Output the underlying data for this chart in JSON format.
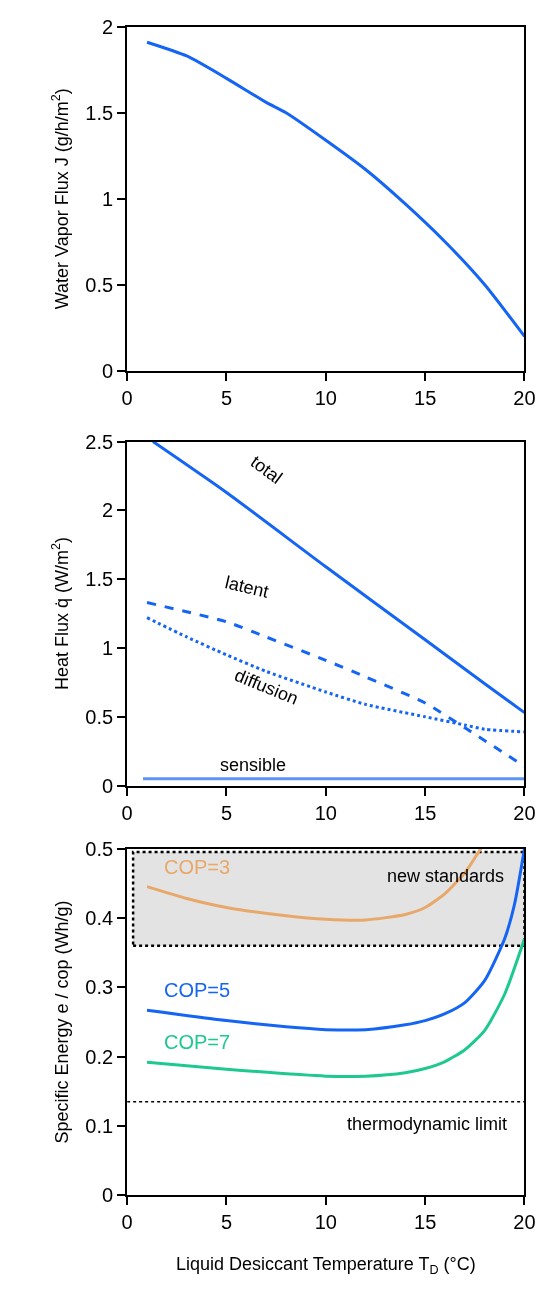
{
  "chart_data": [
    {
      "type": "line",
      "ylabel": "Water Vapor Flux J (g/h/m$^{2}$)",
      "xlim": [
        0,
        20
      ],
      "xticks": [
        0,
        5,
        10,
        15,
        20
      ],
      "ylim": [
        0,
        2
      ],
      "yticks": [
        0,
        0.5,
        1,
        1.5,
        2
      ],
      "grid": false,
      "legend": false,
      "marker": "none",
      "series": [
        {
          "color": "#1565f5",
          "line_style": "solid",
          "x": [
            1,
            3,
            5,
            7,
            8,
            10,
            12,
            14,
            16,
            18,
            20
          ],
          "values": [
            1.91,
            1.83,
            1.7,
            1.56,
            1.5,
            1.34,
            1.17,
            0.97,
            0.75,
            0.5,
            0.2
          ]
        }
      ]
    },
    {
      "type": "line",
      "ylabel": "Heat Flux q̇ (W/m$^{2}$)",
      "xlim": [
        0,
        20
      ],
      "xticks": [
        0,
        5,
        10,
        15,
        20
      ],
      "ylim": [
        0,
        2.5
      ],
      "yticks": [
        0,
        0.5,
        1,
        1.5,
        2,
        2.5
      ],
      "grid": false,
      "legend": false,
      "marker": "none",
      "series": [
        {
          "name": "total",
          "color": "#1565f5",
          "line_style": "solid",
          "x": [
            1.3,
            5,
            10,
            15,
            18,
            20
          ],
          "values": [
            2.5,
            2.13,
            1.59,
            1.06,
            0.74,
            0.53
          ]
        },
        {
          "name": "latent",
          "color": "#1565f5",
          "line_style": "dashed",
          "x": [
            1,
            5,
            7,
            10,
            12,
            15,
            17,
            20
          ],
          "values": [
            1.33,
            1.19,
            1.08,
            0.91,
            0.79,
            0.6,
            0.42,
            0.14
          ]
        },
        {
          "name": "diffusion",
          "color": "#1565f5",
          "line_style": "dotted",
          "x": [
            1,
            3,
            5,
            7,
            10,
            12,
            15,
            17,
            18,
            20
          ],
          "values": [
            1.22,
            1.08,
            0.95,
            0.83,
            0.68,
            0.59,
            0.5,
            0.44,
            0.41,
            0.39
          ]
        },
        {
          "name": "sensible",
          "color": "#5b93f5",
          "line_style": "solid",
          "x": [
            0.8,
            20
          ],
          "values": [
            0.05,
            0.05
          ]
        }
      ]
    },
    {
      "type": "line",
      "xlabel": "Liquid Desiccant Temperature T$_{D}$ (°C)",
      "ylabel": "Specific Energy e / cop (Wh/g)",
      "xlim": [
        0,
        20
      ],
      "xticks": [
        0,
        5,
        10,
        15,
        20
      ],
      "ylim": [
        0,
        0.5
      ],
      "yticks": [
        0,
        0.1,
        0.2,
        0.3,
        0.4,
        0.5
      ],
      "grid": false,
      "legend": false,
      "marker": "none",
      "bands": [
        {
          "axis": "y",
          "from": 0.36,
          "to": 0.495,
          "label": "new standards",
          "color": "#e3e3e3"
        }
      ],
      "ref_lines": [
        {
          "axis": "y",
          "value": 0.135,
          "label": "thermodynamic limit",
          "line_style": "dotted",
          "color": "#000000"
        }
      ],
      "series": [
        {
          "name": "COP=3",
          "color": "#e8a86a",
          "line_style": "solid",
          "x": [
            1,
            3,
            5,
            8,
            10,
            12,
            14,
            15,
            16,
            17,
            17.8
          ],
          "values": [
            0.445,
            0.428,
            0.415,
            0.403,
            0.398,
            0.397,
            0.405,
            0.415,
            0.435,
            0.465,
            0.5
          ]
        },
        {
          "name": "COP=5",
          "color": "#1565f5",
          "line_style": "solid",
          "x": [
            1,
            5,
            8,
            10,
            12,
            14,
            15,
            16,
            17,
            18,
            19,
            19.5,
            20
          ],
          "values": [
            0.267,
            0.252,
            0.243,
            0.239,
            0.239,
            0.246,
            0.252,
            0.262,
            0.278,
            0.31,
            0.37,
            0.42,
            0.5
          ]
        },
        {
          "name": "COP=7",
          "color": "#1ec98f",
          "line_style": "solid",
          "x": [
            1,
            5,
            10,
            12,
            14,
            15,
            16,
            17,
            18,
            19,
            20
          ],
          "values": [
            0.192,
            0.182,
            0.172,
            0.172,
            0.177,
            0.183,
            0.193,
            0.21,
            0.238,
            0.29,
            0.37
          ]
        }
      ]
    }
  ]
}
